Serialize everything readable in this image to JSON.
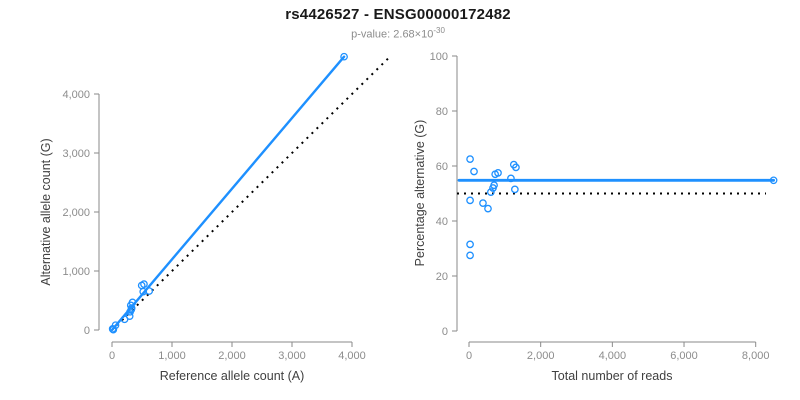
{
  "header": {
    "title": "rs4426527 - ENSG00000172482",
    "pvalue_prefix": "p-value: 2.68×10",
    "pvalue_exponent": "-30"
  },
  "colors": {
    "accent_blue": "#1E90FF",
    "axis_gray": "#8a8a8a",
    "tick_label_gray": "#8c8c8c",
    "axis_title_color": "#404040",
    "dotted_line_black": "#000000"
  },
  "chart_data": [
    {
      "type": "scatter",
      "name": "allele-counts-plot",
      "xlabel": "Reference allele count (A)",
      "ylabel": "Alternative allele count (G)",
      "xlim": [
        0,
        4000
      ],
      "ylim": [
        0,
        4000
      ],
      "xticks": [
        0,
        1000,
        2000,
        3000,
        4000
      ],
      "yticks": [
        0,
        1000,
        2000,
        3000,
        4000
      ],
      "grid": false,
      "points": [
        [
          11,
          19
        ],
        [
          16,
          14
        ],
        [
          21,
          9
        ],
        [
          22,
          8
        ],
        [
          59,
          81
        ],
        [
          209,
          181
        ],
        [
          295,
          235
        ],
        [
          302,
          308
        ],
        [
          322,
          348
        ],
        [
          328,
          372
        ],
        [
          313,
          417
        ],
        [
          342,
          468
        ],
        [
          520,
          650
        ],
        [
          495,
          755
        ],
        [
          533,
          777
        ],
        [
          620,
          660
        ],
        [
          3868,
          4632
        ]
      ],
      "fit_line": {
        "x1": 0,
        "y1": 0,
        "x2": 3868,
        "y2": 4632,
        "style": "solid-blue"
      },
      "identity_line": {
        "x1": 0,
        "y1": 0,
        "x2": 4640,
        "y2": 4640,
        "style": "dotted-black"
      }
    },
    {
      "type": "scatter",
      "name": "percentage-alternative-plot",
      "xlabel": "Total number of reads",
      "ylabel": "Percentage alternative (G)",
      "xlim": [
        0,
        8000
      ],
      "ylim": [
        0,
        100
      ],
      "xticks": [
        0,
        2000,
        4000,
        6000,
        8000
      ],
      "yticks": [
        0,
        20,
        40,
        60,
        80,
        100
      ],
      "grid": false,
      "points": [
        [
          30,
          62.5
        ],
        [
          140,
          58
        ],
        [
          30,
          47.5
        ],
        [
          30,
          31.5
        ],
        [
          30,
          27.5
        ],
        [
          390,
          46.5
        ],
        [
          530,
          44.5
        ],
        [
          610,
          50.5
        ],
        [
          670,
          52
        ],
        [
          700,
          53
        ],
        [
          730,
          57
        ],
        [
          810,
          57.5
        ],
        [
          1170,
          55.5
        ],
        [
          1250,
          60.5
        ],
        [
          1310,
          59.5
        ],
        [
          1280,
          51.5
        ],
        [
          8500,
          54.8
        ]
      ],
      "mean_line_y": 54.8,
      "null_line_y": 50
    }
  ]
}
